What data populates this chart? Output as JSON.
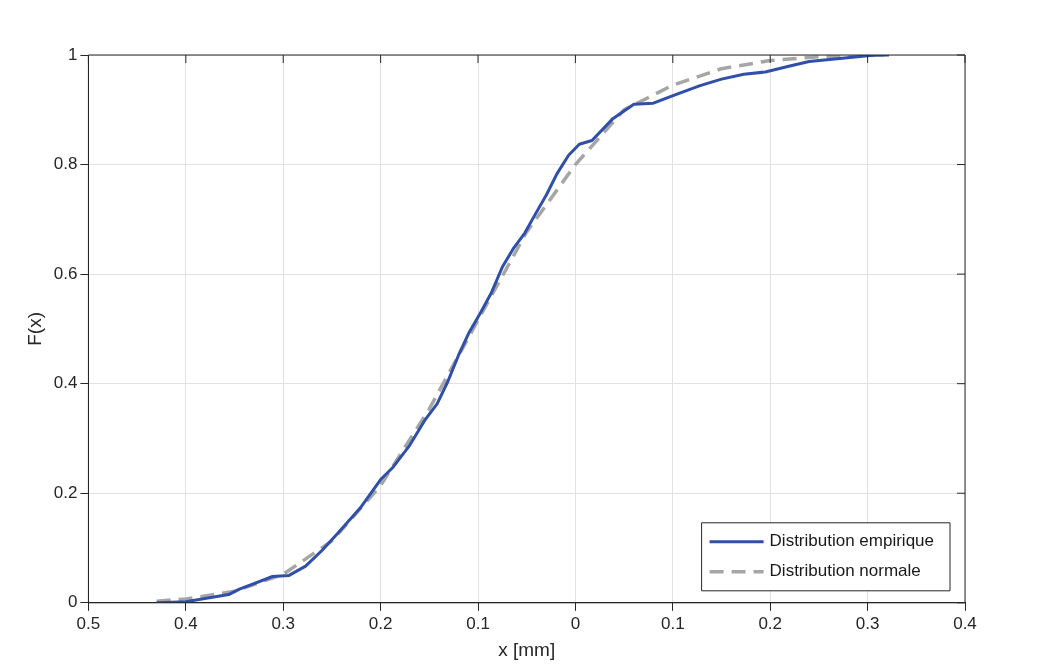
{
  "chart_data": {
    "type": "line",
    "xlabel": "x [mm]",
    "ylabel": "F(x)",
    "xlim": [
      -0.5,
      0.4
    ],
    "xticks": [
      {
        "value": -0.5,
        "label": "0.5"
      },
      {
        "value": -0.4,
        "label": "0.4"
      },
      {
        "value": -0.3,
        "label": "0.3"
      },
      {
        "value": -0.2,
        "label": "0.2"
      },
      {
        "value": -0.1,
        "label": "0.1"
      },
      0,
      0.1,
      0.2,
      0.3,
      0.4
    ],
    "ylim": [
      0,
      1
    ],
    "yticks": [
      0,
      0.2,
      0.4,
      0.6,
      0.8,
      1
    ],
    "grid": true,
    "legend": "bottom right",
    "marker": "none",
    "series": [
      {
        "name": "Distribution empirique",
        "color": "#2f4fa8",
        "line_style": "solid",
        "x": [
          -0.43,
          -0.4,
          -0.356,
          -0.345,
          -0.311,
          -0.294,
          -0.277,
          -0.26,
          -0.244,
          -0.221,
          -0.2,
          -0.187,
          -0.17,
          -0.154,
          -0.142,
          -0.131,
          -0.12,
          -0.109,
          -0.097,
          -0.086,
          -0.075,
          -0.064,
          -0.052,
          -0.041,
          -0.03,
          -0.019,
          -0.007,
          0.004,
          0.017,
          0.038,
          0.06,
          0.08,
          0.105,
          0.128,
          0.15,
          0.173,
          0.195,
          0.218,
          0.24,
          0.274,
          0.308,
          0.322
        ],
        "values": [
          0,
          0.002,
          0.015,
          0.025,
          0.048,
          0.05,
          0.067,
          0.096,
          0.127,
          0.173,
          0.225,
          0.248,
          0.288,
          0.335,
          0.363,
          0.404,
          0.452,
          0.494,
          0.531,
          0.567,
          0.613,
          0.646,
          0.675,
          0.71,
          0.744,
          0.783,
          0.817,
          0.837,
          0.844,
          0.883,
          0.91,
          0.912,
          0.929,
          0.944,
          0.956,
          0.965,
          0.969,
          0.979,
          0.988,
          0.994,
          1,
          1
        ]
      },
      {
        "name": "Distribution normale",
        "color": "#a6a6a6",
        "line_style": "dashed",
        "x": [
          -0.43,
          -0.4,
          -0.35,
          -0.3,
          -0.25,
          -0.2,
          -0.15,
          -0.1,
          -0.05,
          0,
          0.05,
          0.1,
          0.15,
          0.2,
          0.25,
          0.32
        ],
        "values": [
          0.003,
          0.007,
          0.021,
          0.052,
          0.113,
          0.214,
          0.354,
          0.516,
          0.677,
          0.8,
          0.9,
          0.945,
          0.975,
          0.99,
          0.997,
          1
        ]
      }
    ]
  }
}
